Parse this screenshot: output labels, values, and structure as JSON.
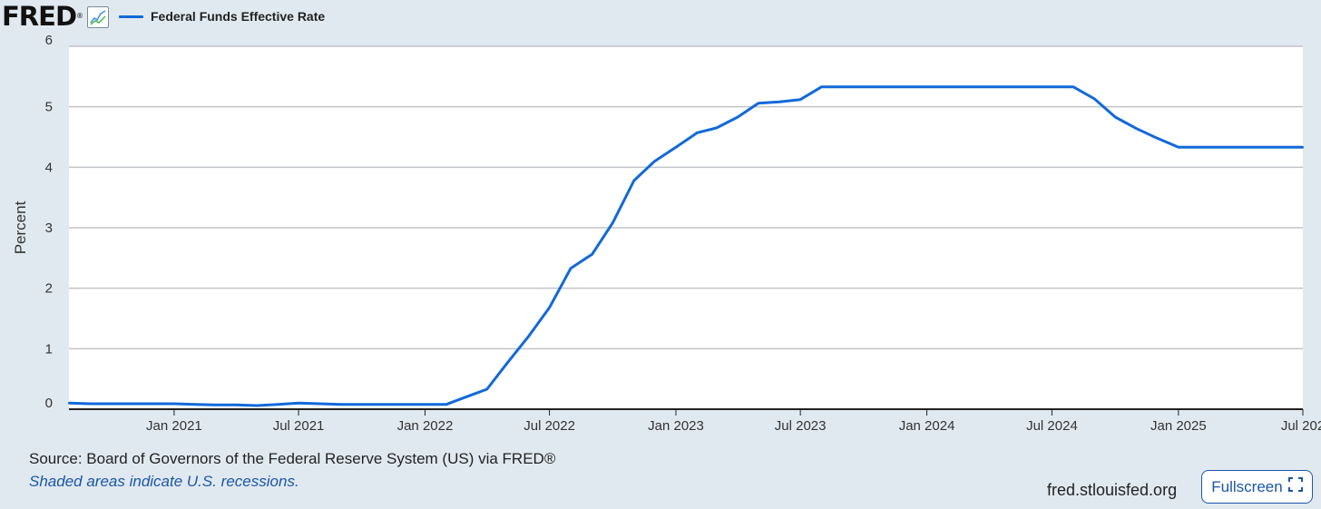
{
  "header": {
    "logo_text": "FRED",
    "logo_mark": "®",
    "logo_icon": "line-chart-icon"
  },
  "footer": {
    "source": "Source: Board of Governors of the Federal Reserve System (US) via FRED®",
    "recession_note": "Shaded areas indicate U.S. recessions.",
    "site": "fred.stlouisfed.org",
    "fullscreen_label": "Fullscreen",
    "fullscreen_icon": "expand-icon"
  },
  "colors": {
    "background": "#e1e9f0",
    "plot_area": "#ffffff",
    "series": "#1269d9",
    "grid": "#c0c4c8",
    "link": "#1a56a8"
  },
  "chart_data": {
    "type": "line",
    "title": "",
    "xlabel": "",
    "ylabel": "Percent",
    "ylim": [
      0,
      6
    ],
    "xlim": [
      "2020-08-01",
      "2025-07-01"
    ],
    "grid": true,
    "legend": "top-left",
    "y_ticks": [
      "0",
      "1",
      "2",
      "3",
      "4",
      "5",
      "6"
    ],
    "x_ticks": [
      {
        "label": "Jan 2021",
        "date": "2021-01-01"
      },
      {
        "label": "Jul 2021",
        "date": "2021-07-01"
      },
      {
        "label": "Jan 2022",
        "date": "2022-01-01"
      },
      {
        "label": "Jul 2022",
        "date": "2022-07-01"
      },
      {
        "label": "Jan 2023",
        "date": "2023-01-01"
      },
      {
        "label": "Jul 2023",
        "date": "2023-07-01"
      },
      {
        "label": "Jan 2024",
        "date": "2024-01-01"
      },
      {
        "label": "Jul 2024",
        "date": "2024-07-01"
      },
      {
        "label": "Jan 2025",
        "date": "2025-01-01"
      },
      {
        "label": "Jul 202",
        "date": "2025-07-01"
      }
    ],
    "series": [
      {
        "name": "Federal Funds Effective Rate",
        "x": [
          "2020-08-01",
          "2020-09-01",
          "2020-10-01",
          "2020-11-01",
          "2020-12-01",
          "2021-01-01",
          "2021-02-01",
          "2021-03-01",
          "2021-04-01",
          "2021-05-01",
          "2021-06-01",
          "2021-07-01",
          "2021-08-01",
          "2021-09-01",
          "2021-10-01",
          "2021-11-01",
          "2021-12-01",
          "2022-01-01",
          "2022-02-01",
          "2022-03-01",
          "2022-04-01",
          "2022-05-01",
          "2022-06-01",
          "2022-07-01",
          "2022-08-01",
          "2022-09-01",
          "2022-10-01",
          "2022-11-01",
          "2022-12-01",
          "2023-01-01",
          "2023-02-01",
          "2023-03-01",
          "2023-04-01",
          "2023-05-01",
          "2023-06-01",
          "2023-07-01",
          "2023-08-01",
          "2023-09-01",
          "2023-10-01",
          "2023-11-01",
          "2023-12-01",
          "2024-01-01",
          "2024-02-01",
          "2024-03-01",
          "2024-04-01",
          "2024-05-01",
          "2024-06-01",
          "2024-07-01",
          "2024-08-01",
          "2024-09-01",
          "2024-10-01",
          "2024-11-01",
          "2024-12-01",
          "2025-01-01",
          "2025-02-01",
          "2025-03-01",
          "2025-04-01",
          "2025-05-01",
          "2025-06-01",
          "2025-07-01"
        ],
        "values": [
          0.1,
          0.09,
          0.09,
          0.09,
          0.09,
          0.09,
          0.08,
          0.07,
          0.07,
          0.06,
          0.08,
          0.1,
          0.09,
          0.08,
          0.08,
          0.08,
          0.08,
          0.08,
          0.08,
          0.2,
          0.33,
          0.77,
          1.21,
          1.68,
          2.33,
          2.56,
          3.08,
          3.78,
          4.1,
          4.33,
          4.57,
          4.65,
          4.83,
          5.06,
          5.08,
          5.12,
          5.33,
          5.33,
          5.33,
          5.33,
          5.33,
          5.33,
          5.33,
          5.33,
          5.33,
          5.33,
          5.33,
          5.33,
          5.33,
          5.13,
          4.83,
          4.64,
          4.48,
          4.33,
          4.33,
          4.33,
          4.33,
          4.33,
          4.33,
          4.33
        ]
      }
    ]
  }
}
